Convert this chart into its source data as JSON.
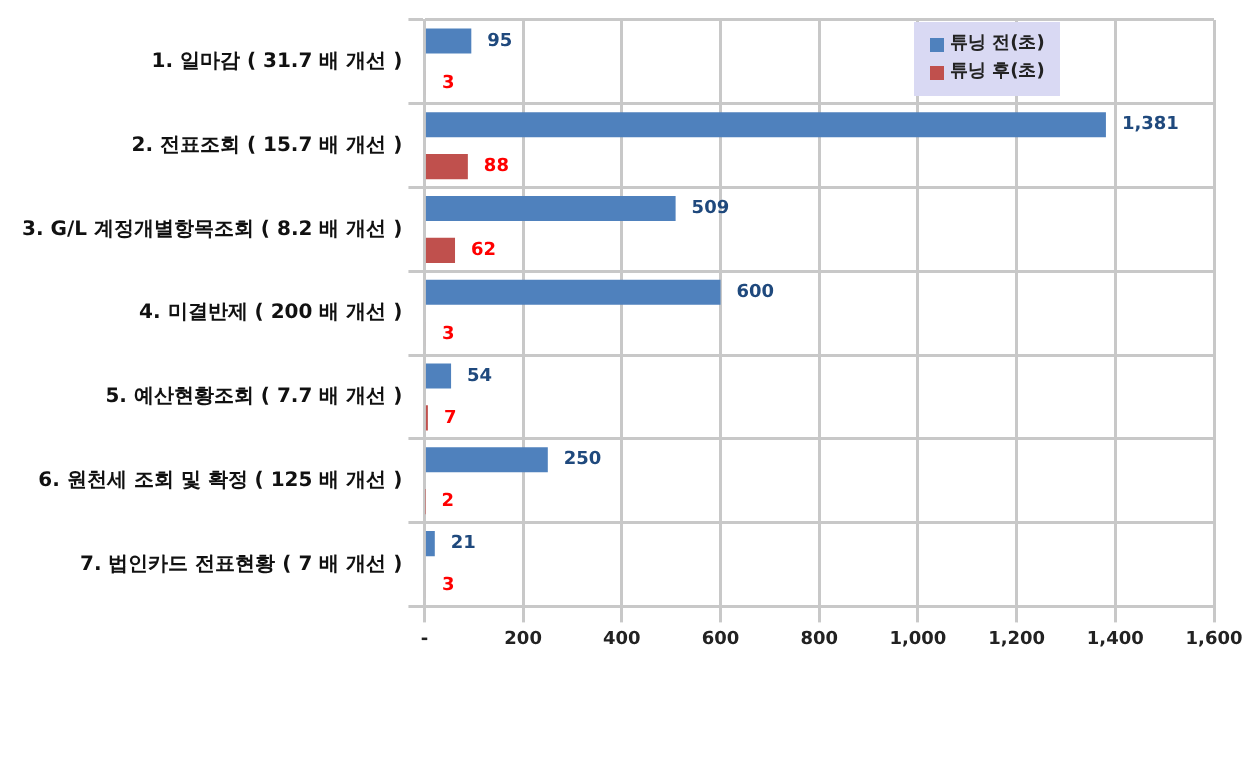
{
  "chart_data": {
    "type": "bar",
    "orientation": "horizontal",
    "categories": [
      "1. 일마감 ( 31.7 배 개선 )",
      "2. 전표조회 ( 15.7 배 개선 )",
      "3. G/L 계정개별항목조회 ( 8.2 배 개선 )",
      "4. 미결반제 ( 200 배 개선 )",
      "5. 예산현황조회 ( 7.7 배 개선 )",
      "6. 원천세 조회 및 확정 ( 125 배 개선 )",
      "7. 법인카드 전표현황 ( 7 배 개선 )"
    ],
    "series": [
      {
        "name": "튜닝 전(초)",
        "color": "#4f81bd",
        "values": [
          95,
          1381,
          509,
          600,
          54,
          250,
          21
        ],
        "value_labels": [
          "95",
          "1,381",
          "509",
          "600",
          "54",
          "250",
          "21"
        ]
      },
      {
        "name": "튜닝 후(초)",
        "color": "#c0504d",
        "values": [
          3,
          88,
          62,
          3,
          7,
          2,
          3
        ],
        "value_labels": [
          "3",
          "88",
          "62",
          "3",
          "7",
          "2",
          "3"
        ]
      }
    ],
    "xlim": [
      0,
      1600
    ],
    "xticks": [
      {
        "value": 0,
        "label": "-"
      },
      200,
      400,
      600,
      800,
      {
        "value": 1000,
        "label": "1,000"
      },
      {
        "value": 1200,
        "label": "1,200"
      },
      {
        "value": 1400,
        "label": "1,400"
      },
      {
        "value": 1600,
        "label": "1,600"
      }
    ],
    "grid": true,
    "legend": "top right"
  }
}
